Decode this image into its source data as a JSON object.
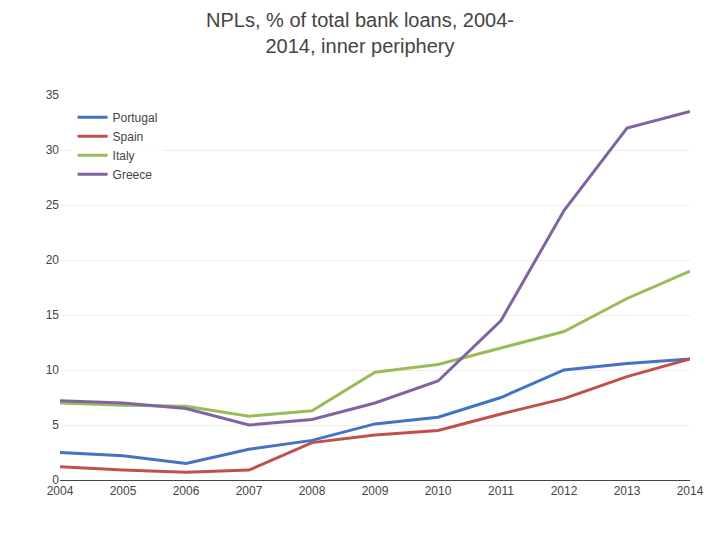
{
  "chart_data": {
    "type": "line",
    "title": "NPLs, % of total bank loans, 2004-\n2014, inner periphery",
    "x": [
      2004,
      2005,
      2006,
      2007,
      2008,
      2009,
      2010,
      2011,
      2012,
      2013,
      2014
    ],
    "series": [
      {
        "name": "Portugal",
        "color": "#4472C4",
        "values": [
          2.5,
          2.2,
          1.5,
          2.8,
          3.6,
          5.1,
          5.7,
          7.5,
          10.0,
          10.6,
          11.0
        ]
      },
      {
        "name": "Spain",
        "color": "#C0504D",
        "values": [
          1.2,
          0.9,
          0.7,
          0.9,
          3.4,
          4.1,
          4.5,
          6.0,
          7.4,
          9.4,
          11.0
        ]
      },
      {
        "name": "Italy",
        "color": "#9BBB59",
        "values": [
          7.0,
          6.8,
          6.7,
          5.8,
          6.3,
          9.8,
          10.5,
          12.0,
          13.5,
          16.5,
          19.0
        ]
      },
      {
        "name": "Greece",
        "color": "#8064A2",
        "values": [
          7.2,
          7.0,
          6.5,
          5.0,
          5.5,
          7.0,
          9.0,
          14.5,
          24.5,
          32.0,
          33.5
        ]
      }
    ],
    "xlim": [
      2004,
      2014
    ],
    "xticks": [
      2004,
      2005,
      2006,
      2007,
      2008,
      2009,
      2010,
      2011,
      2012,
      2013,
      2014
    ],
    "ylim": [
      0,
      35
    ],
    "yticks": [
      0,
      5,
      10,
      15,
      20,
      25,
      30,
      35
    ],
    "grid": "y",
    "legend": "upper left"
  }
}
